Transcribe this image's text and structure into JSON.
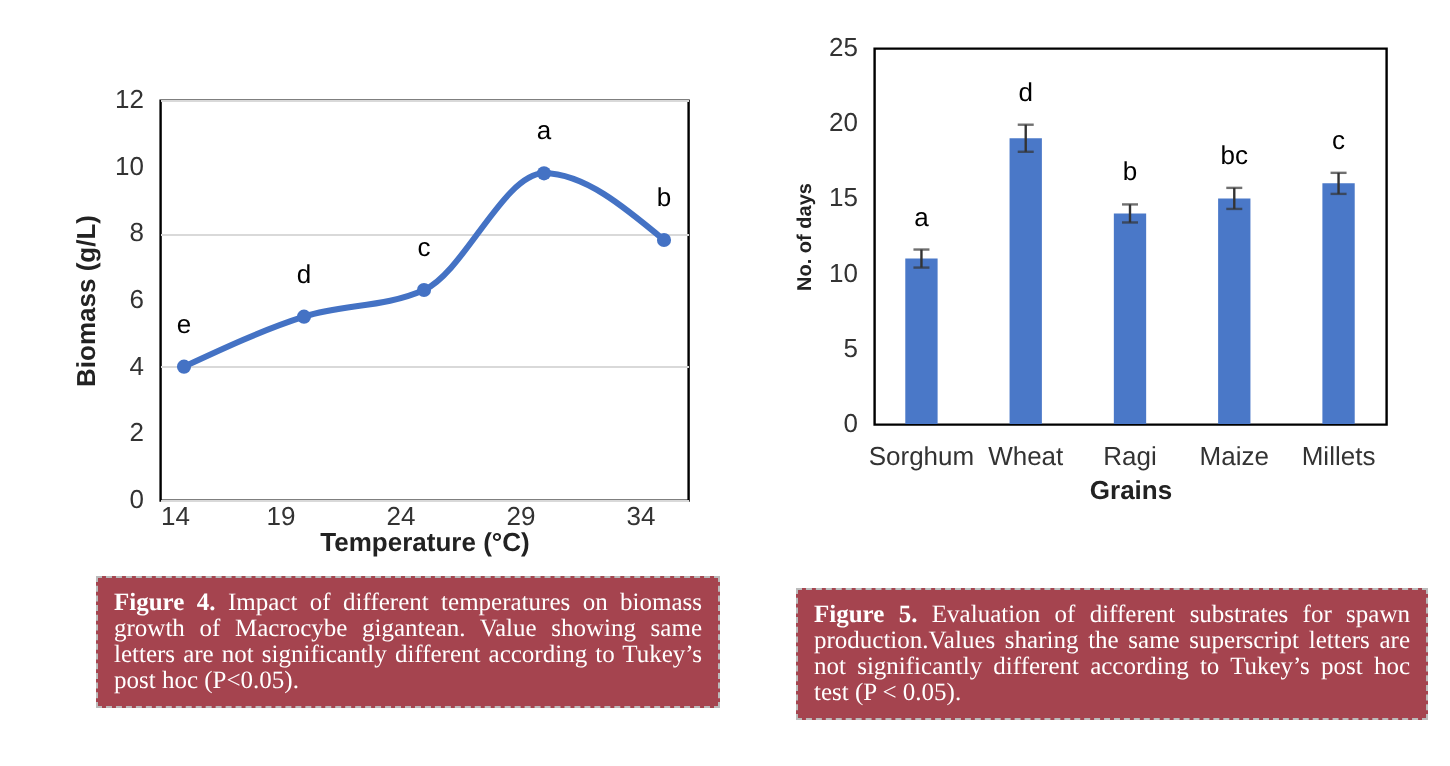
{
  "chart_data": [
    {
      "type": "line",
      "xlabel": "Temperature (°C)",
      "ylabel": "Biomass (g/L)",
      "x": [
        15,
        20,
        25,
        30,
        35
      ],
      "values": [
        4,
        5.5,
        6.3,
        9.8,
        7.8
      ],
      "color": "#4472c4",
      "xlim": [
        14,
        36
      ],
      "xticks": [
        14,
        19,
        24,
        29,
        34
      ],
      "ylim": [
        0,
        12
      ],
      "yticks": [
        0,
        2,
        4,
        6,
        8,
        10,
        12
      ],
      "grid": "y",
      "marker": "circle",
      "annotations": [
        {
          "text": "e",
          "x": 15,
          "y": 4
        },
        {
          "text": "d",
          "x": 20,
          "y": 5.5
        },
        {
          "text": "c",
          "x": 25,
          "y": 6.3
        },
        {
          "text": "a",
          "x": 30,
          "y": 9.8
        },
        {
          "text": "b",
          "x": 35,
          "y": 7.8
        },
        "Figure 4. Impact of different temperatures on biomass growth of Macrocybe gigantean. Value showing same letters are not significantly different according to Tukey’s post hoc (P<0.05)."
      ]
    },
    {
      "type": "bar",
      "xlabel": "Grains",
      "ylabel": "No. of days",
      "categories": [
        "Sorghum",
        "Wheat",
        "Ragi",
        "Maize",
        "Millets"
      ],
      "values": [
        11,
        19,
        14,
        15,
        16
      ],
      "errors": [
        0.6,
        0.9,
        0.6,
        0.7,
        0.7
      ],
      "color": "#4a78c8",
      "ylim": [
        0,
        25
      ],
      "yticks": [
        0,
        5,
        10,
        15,
        20,
        25
      ],
      "annotations": [
        {
          "text": "a",
          "x": "Sorghum",
          "y": 11.6
        },
        {
          "text": "d",
          "x": "Wheat",
          "y": 19.9
        },
        {
          "text": "b",
          "x": "Ragi",
          "y": 14.6
        },
        {
          "text": "bc",
          "x": "Maize",
          "y": 15.7
        },
        {
          "text": "c",
          "x": "Millets",
          "y": 16.7
        },
        "Figure 5. Evaluation of different substrates for spawn production.Values sharing the same superscript letters are not significantly different according to Tukey’s post hoc test (P < 0.05)."
      ]
    }
  ]
}
